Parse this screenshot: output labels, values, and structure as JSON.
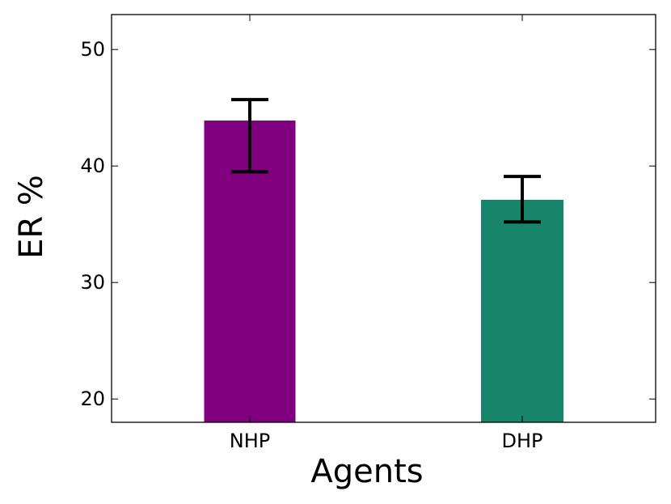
{
  "chart_data": {
    "type": "bar",
    "title": "",
    "xlabel": "Agents",
    "ylabel": "ER %",
    "categories": [
      "NHP",
      "DHP"
    ],
    "values": [
      43.9,
      37.1
    ],
    "error_bars": [
      [
        39.5,
        45.7
      ],
      [
        35.2,
        39.1
      ]
    ],
    "bar_colors": [
      "#800080",
      "#17856a"
    ],
    "ylim": [
      18,
      53
    ],
    "yticks": [
      20,
      30,
      40,
      50
    ],
    "ytick_labels": [
      "20",
      "30",
      "40",
      "50"
    ],
    "grid": false,
    "legend": "none"
  }
}
